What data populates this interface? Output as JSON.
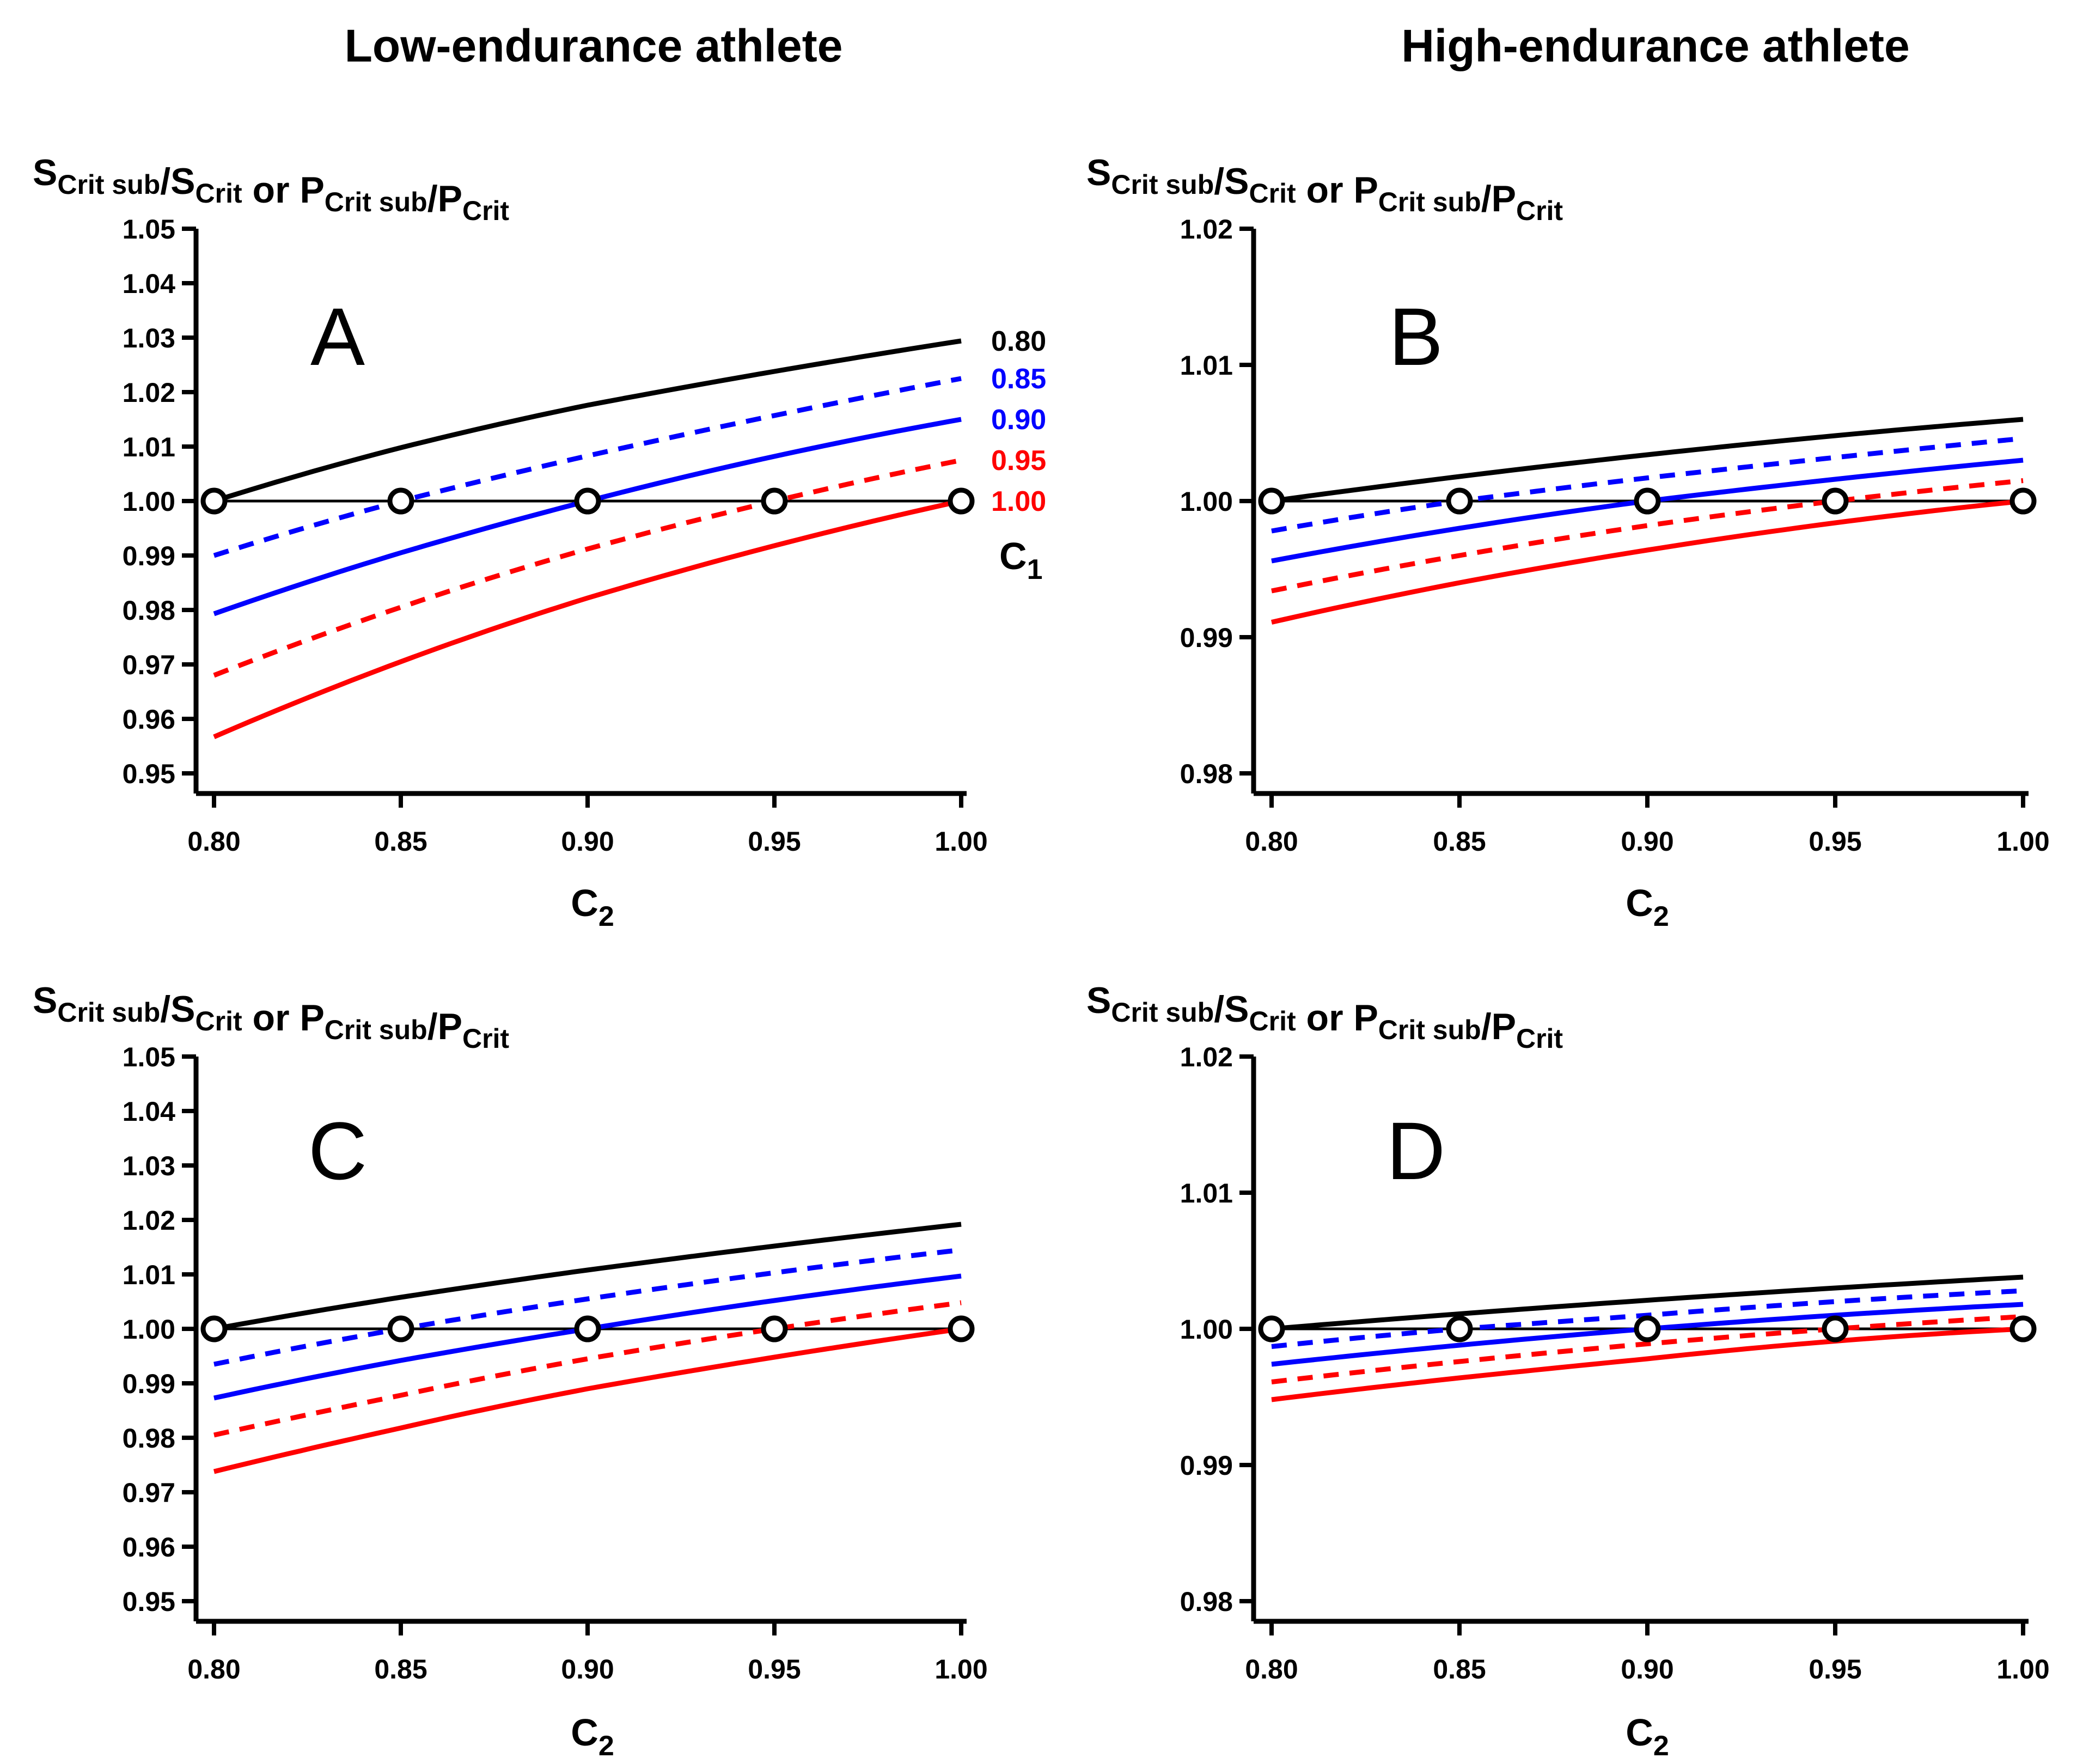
{
  "column_titles": [
    "Low-endurance athlete",
    "High-endurance athlete"
  ],
  "y_axis_label": {
    "s_main": "S",
    "s_sub": "Crit sub",
    "s_denom": "S",
    "s_denom_sub": "Crit",
    "or_text": "or",
    "p_main": "P",
    "p_sub": "Crit sub",
    "p_denom": "P",
    "p_denom_sub": "Crit"
  },
  "x_axis_label": {
    "main": "C",
    "sub": "2"
  },
  "c1_legend": {
    "title_main": "C",
    "title_sub": "1",
    "entries": [
      {
        "label": "0.80",
        "color": "#000000"
      },
      {
        "label": "0.85",
        "color": "#0000ff"
      },
      {
        "label": "0.90",
        "color": "#0000ff"
      },
      {
        "label": "0.95",
        "color": "#ff0000"
      },
      {
        "label": "1.00",
        "color": "#ff0000"
      }
    ]
  },
  "chart_data": [
    {
      "panel": "A",
      "type": "line",
      "ylim": [
        0.95,
        1.05
      ],
      "yticks": [
        "0.95",
        "0.96",
        "0.97",
        "0.98",
        "0.99",
        "1.00",
        "1.01",
        "1.02",
        "1.03",
        "1.04",
        "1.05"
      ],
      "xlim": [
        0.8,
        1.0
      ],
      "xticks": [
        "0.80",
        "0.85",
        "0.90",
        "0.95",
        "1.00"
      ],
      "series": [
        {
          "name": "C1 = 0.80",
          "color": "#000000",
          "dash": false,
          "values": [
            1.0,
            1.0098,
            1.0176,
            1.0238,
            1.0294
          ]
        },
        {
          "name": "C1 = 0.85",
          "color": "#0000ff",
          "dash": true,
          "values": [
            0.99,
            1.0,
            1.0083,
            1.0157,
            1.0225
          ]
        },
        {
          "name": "C1 = 0.90",
          "color": "#0000ff",
          "dash": false,
          "values": [
            0.9793,
            0.9905,
            1.0,
            1.0082,
            1.015
          ]
        },
        {
          "name": "C1 = 0.95",
          "color": "#ff0000",
          "dash": true,
          "values": [
            0.968,
            0.9805,
            0.9912,
            1.0,
            1.0075
          ]
        },
        {
          "name": "C1 = 1.00",
          "color": "#ff0000",
          "dash": false,
          "values": [
            0.9567,
            0.9705,
            0.9822,
            0.9918,
            1.0
          ]
        }
      ],
      "reference_line": 1.0,
      "markers_x": [
        0.8,
        0.85,
        0.9,
        0.95,
        1.0
      ]
    },
    {
      "panel": "B",
      "type": "line",
      "ylim": [
        0.98,
        1.02
      ],
      "yticks": [
        "0.98",
        "0.99",
        "1.00",
        "1.01",
        "1.02"
      ],
      "xlim": [
        0.8,
        1.0
      ],
      "xticks": [
        "0.80",
        "0.85",
        "0.90",
        "0.95",
        "1.00"
      ],
      "series": [
        {
          "name": "C1 = 0.80",
          "color": "#000000",
          "dash": false,
          "values": [
            1.0,
            1.0018,
            1.0034,
            1.0048,
            1.006
          ]
        },
        {
          "name": "C1 = 0.85",
          "color": "#0000ff",
          "dash": true,
          "values": [
            0.9978,
            1.0,
            1.0017,
            1.0032,
            1.0046
          ]
        },
        {
          "name": "C1 = 0.90",
          "color": "#0000ff",
          "dash": false,
          "values": [
            0.9956,
            0.998,
            1.0,
            1.0016,
            1.003
          ]
        },
        {
          "name": "C1 = 0.95",
          "color": "#ff0000",
          "dash": true,
          "values": [
            0.9934,
            0.996,
            0.9982,
            1.0,
            1.0015
          ]
        },
        {
          "name": "C1 = 1.00",
          "color": "#ff0000",
          "dash": false,
          "values": [
            0.9911,
            0.994,
            0.9964,
            0.9984,
            1.0
          ]
        }
      ],
      "reference_line": 1.0,
      "markers_x": [
        0.8,
        0.85,
        0.9,
        0.95,
        1.0
      ]
    },
    {
      "panel": "C",
      "type": "line",
      "ylim": [
        0.95,
        1.05
      ],
      "yticks": [
        "0.95",
        "0.96",
        "0.97",
        "0.98",
        "0.99",
        "1.00",
        "1.01",
        "1.02",
        "1.03",
        "1.04",
        "1.05"
      ],
      "xlim": [
        0.8,
        1.0
      ],
      "xticks": [
        "0.80",
        "0.85",
        "0.90",
        "0.95",
        "1.00"
      ],
      "series": [
        {
          "name": "C1 = 0.80",
          "color": "#000000",
          "dash": false,
          "values": [
            1.0,
            1.0058,
            1.0108,
            1.0152,
            1.0192
          ]
        },
        {
          "name": "C1 = 0.85",
          "color": "#0000ff",
          "dash": true,
          "values": [
            0.9935,
            1.0,
            1.0055,
            1.0103,
            1.0145
          ]
        },
        {
          "name": "C1 = 0.90",
          "color": "#0000ff",
          "dash": false,
          "values": [
            0.9873,
            0.9942,
            1.0,
            1.0052,
            1.0097
          ]
        },
        {
          "name": "C1 = 0.95",
          "color": "#ff0000",
          "dash": true,
          "values": [
            0.9805,
            0.9878,
            0.9945,
            1.0,
            1.0048
          ]
        },
        {
          "name": "C1 = 1.00",
          "color": "#ff0000",
          "dash": false,
          "values": [
            0.9738,
            0.9818,
            0.989,
            0.9948,
            1.0
          ]
        }
      ],
      "reference_line": 1.0,
      "markers_x": [
        0.8,
        0.85,
        0.9,
        0.95,
        1.0
      ]
    },
    {
      "panel": "D",
      "type": "line",
      "ylim": [
        0.98,
        1.02
      ],
      "yticks": [
        "0.98",
        "0.99",
        "1.00",
        "1.01",
        "1.02"
      ],
      "xlim": [
        0.8,
        1.0
      ],
      "xticks": [
        "0.80",
        "0.85",
        "0.90",
        "0.95",
        "1.00"
      ],
      "series": [
        {
          "name": "C1 = 0.80",
          "color": "#000000",
          "dash": false,
          "values": [
            1.0,
            1.0011,
            1.0021,
            1.003,
            1.0038
          ]
        },
        {
          "name": "C1 = 0.85",
          "color": "#0000ff",
          "dash": true,
          "values": [
            0.9987,
            1.0,
            1.001,
            1.002,
            1.0028
          ]
        },
        {
          "name": "C1 = 0.90",
          "color": "#0000ff",
          "dash": false,
          "values": [
            0.9974,
            0.9988,
            1.0,
            1.001,
            1.0018
          ]
        },
        {
          "name": "C1 = 0.95",
          "color": "#ff0000",
          "dash": true,
          "values": [
            0.9961,
            0.9976,
            0.9989,
            1.0,
            1.0009
          ]
        },
        {
          "name": "C1 = 1.00",
          "color": "#ff0000",
          "dash": false,
          "values": [
            0.9948,
            0.9964,
            0.9978,
            0.9991,
            1.0
          ]
        }
      ],
      "reference_line": 1.0,
      "markers_x": [
        0.8,
        0.85,
        0.9,
        0.95,
        1.0
      ]
    }
  ]
}
